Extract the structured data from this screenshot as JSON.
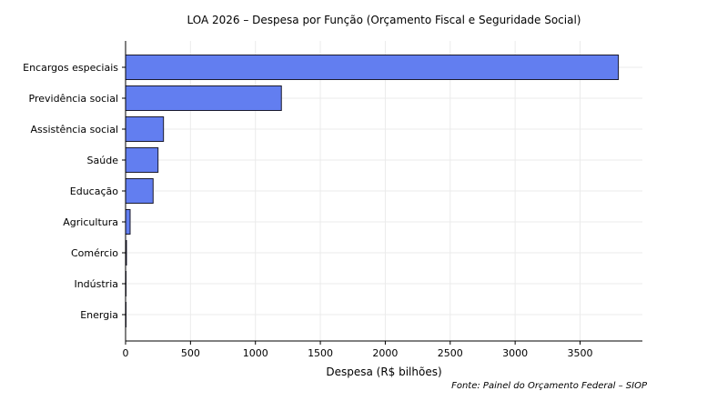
{
  "chart_data": {
    "type": "bar",
    "orientation": "horizontal",
    "title": "LOA 2026 – Despesa por Função (Orçamento Fiscal e Seguridade Social)",
    "xlabel": "Despesa (R$ bilhões)",
    "ylabel": "",
    "source": "Fonte: Painel do Orçamento Federal – SIOP",
    "categories": [
      "Encargos especiais",
      "Previdência social",
      "Assistência social",
      "Saúde",
      "Educação",
      "Agricultura",
      "Comércio",
      "Indústria",
      "Energia"
    ],
    "values": [
      3795,
      1200,
      292,
      250,
      212,
      35,
      7,
      3,
      1
    ],
    "xlim": [
      0,
      3980
    ],
    "xticks": [
      0,
      500,
      1000,
      1500,
      2000,
      2500,
      3000,
      3500
    ],
    "grid": true,
    "bar_color": "#627ef0",
    "edge_color": "#1a1a2e"
  }
}
